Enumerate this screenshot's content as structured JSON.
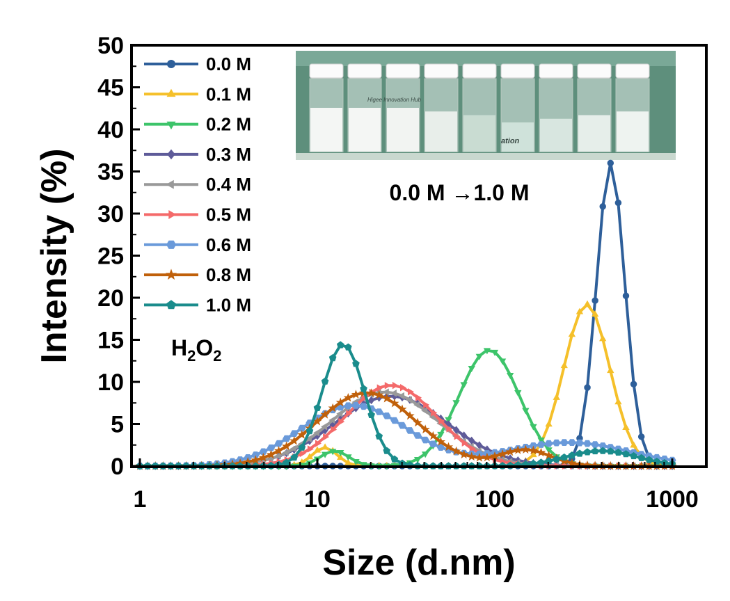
{
  "chart_data": {
    "type": "line",
    "xlabel": "Size (d.nm)",
    "ylabel": "Intensity (%)",
    "x_scale": "log",
    "xlim": [
      1,
      1000
    ],
    "ylim": [
      0,
      50
    ],
    "x_ticks": [
      "1",
      "10",
      "100",
      "1000"
    ],
    "y_ticks": [
      "0",
      "5",
      "10",
      "15",
      "20",
      "25",
      "30",
      "35",
      "40",
      "45",
      "50"
    ],
    "legend_position": "top-left",
    "annotations": {
      "photo_caption": "0.0 M →1.0 M",
      "reagent_main": "H",
      "reagent_sub1": "2",
      "reagent_mid": "O",
      "reagent_sub2": "2"
    },
    "photo_labels": {
      "brand": "Higee Innovation Hub",
      "fragment": "ation"
    },
    "series": [
      {
        "name": "0.0 M",
        "color": "#2E5F9A",
        "marker": "circle",
        "peaks": [
          {
            "center": 450,
            "height": 36,
            "sigma": 0.08
          }
        ]
      },
      {
        "name": "0.1 M",
        "color": "#F5C02A",
        "marker": "triangle-up",
        "peaks": [
          {
            "center": 11,
            "height": 2.2,
            "sigma": 0.07
          },
          {
            "center": 330,
            "height": 19.2,
            "sigma": 0.13
          }
        ]
      },
      {
        "name": "0.2 M",
        "color": "#3DC46A",
        "marker": "triangle-down",
        "peaks": [
          {
            "center": 12.5,
            "height": 1.8,
            "sigma": 0.08
          },
          {
            "center": 93,
            "height": 13.8,
            "sigma": 0.17
          }
        ]
      },
      {
        "name": "0.3 M",
        "color": "#5E5B99",
        "marker": "diamond",
        "peaks": [
          {
            "center": 26,
            "height": 8.3,
            "sigma": 0.32
          }
        ]
      },
      {
        "name": "0.4 M",
        "color": "#999999",
        "marker": "triangle-left",
        "peaks": [
          {
            "center": 24,
            "height": 8.8,
            "sigma": 0.3
          }
        ]
      },
      {
        "name": "0.5 M",
        "color": "#F46A6A",
        "marker": "triangle-right",
        "peaks": [
          {
            "center": 26,
            "height": 9.6,
            "sigma": 0.26
          }
        ]
      },
      {
        "name": "0.6 M",
        "color": "#6A9ADA",
        "marker": "hexagon",
        "peaks": [
          {
            "center": 16,
            "height": 7.2,
            "sigma": 0.3
          },
          {
            "center": 260,
            "height": 2.8,
            "sigma": 0.35
          }
        ]
      },
      {
        "name": "0.8 M",
        "color": "#C0600A",
        "marker": "star",
        "peaks": [
          {
            "center": 19,
            "height": 8.7,
            "sigma": 0.28
          },
          {
            "center": 150,
            "height": 1.9,
            "sigma": 0.14
          }
        ]
      },
      {
        "name": "1.0 M",
        "color": "#1A8C8C",
        "marker": "pentagon",
        "peaks": [
          {
            "center": 14,
            "height": 14.5,
            "sigma": 0.12
          },
          {
            "center": 400,
            "height": 1.8,
            "sigma": 0.2
          }
        ]
      }
    ]
  }
}
